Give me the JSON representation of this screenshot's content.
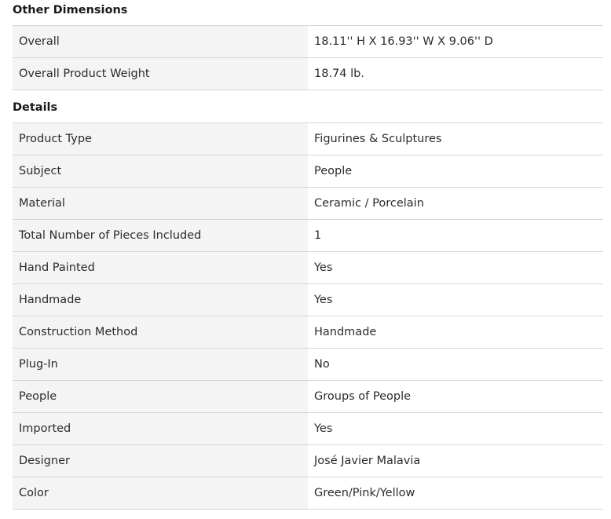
{
  "sections": [
    {
      "title": "Other Dimensions",
      "rows": [
        {
          "label": "Overall",
          "value": "18.11'' H X 16.93'' W X 9.06'' D"
        },
        {
          "label": "Overall Product Weight",
          "value": "18.74 lb."
        }
      ]
    },
    {
      "title": "Details",
      "rows": [
        {
          "label": "Product Type",
          "value": "Figurines & Sculptures"
        },
        {
          "label": "Subject",
          "value": "People"
        },
        {
          "label": "Material",
          "value": "Ceramic / Porcelain"
        },
        {
          "label": "Total Number of Pieces Included",
          "value": "1"
        },
        {
          "label": "Hand Painted",
          "value": "Yes"
        },
        {
          "label": "Handmade",
          "value": "Yes"
        },
        {
          "label": "Construction Method",
          "value": "Handmade"
        },
        {
          "label": "Plug-In",
          "value": "No"
        },
        {
          "label": "People",
          "value": "Groups of People"
        },
        {
          "label": "Imported",
          "value": "Yes"
        },
        {
          "label": "Designer",
          "value": "José Javier Malavia"
        },
        {
          "label": "Color",
          "value": "Green/Pink/Yellow"
        }
      ]
    }
  ]
}
